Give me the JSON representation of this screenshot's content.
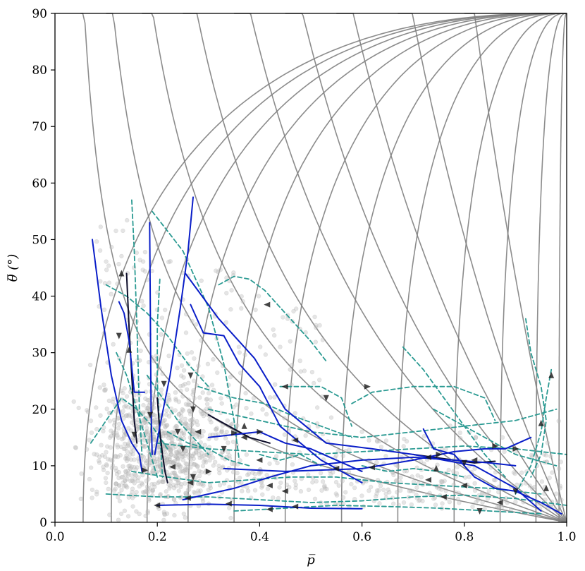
{
  "chart_data": {
    "type": "line",
    "title": "",
    "xlabel": "p̅",
    "ylabel": "θ̅ (°)",
    "xlim": [
      0.0,
      1.0
    ],
    "ylim": [
      0,
      90
    ],
    "x_ticks": [
      "0.0",
      "0.2",
      "0.4",
      "0.6",
      "0.8",
      "1.0"
    ],
    "y_ticks": [
      "0",
      "10",
      "20",
      "30",
      "40",
      "50",
      "60",
      "70",
      "80",
      "90"
    ],
    "grid": false,
    "legend": "none",
    "colors": {
      "gridlines": "#808080",
      "blue": "#0a1ec8",
      "teal": "#2a9a92",
      "dark": "#0d0d2a",
      "points": "#bdbdbd"
    },
    "curvilinear_grid": {
      "hyperbola_levels": [
        0.05,
        0.1,
        0.17,
        0.25,
        0.35,
        0.45,
        0.55,
        0.67,
        0.8
      ],
      "arc_points_x": [
        0.055,
        0.11,
        0.18,
        0.26,
        0.35,
        0.45,
        0.56,
        0.67,
        0.78,
        0.87,
        0.94,
        0.985
      ]
    },
    "series": [
      {
        "style": "blue",
        "x": [
          0.073,
          0.09,
          0.11,
          0.13,
          0.15,
          0.165,
          0.17
        ],
        "y": [
          50,
          38,
          26,
          18,
          14,
          12,
          9
        ]
      },
      {
        "style": "blue",
        "x": [
          0.125,
          0.135,
          0.145,
          0.155,
          0.175
        ],
        "y": [
          39,
          37,
          32,
          23,
          23
        ]
      },
      {
        "style": "blue",
        "x": [
          0.185,
          0.186,
          0.187,
          0.188,
          0.19
        ],
        "y": [
          53,
          42,
          28,
          19,
          12
        ]
      },
      {
        "style": "blue",
        "x": [
          0.27,
          0.26,
          0.245,
          0.225,
          0.205,
          0.195
        ],
        "y": [
          57.5,
          48,
          38,
          26,
          17,
          12
        ]
      },
      {
        "style": "blue",
        "x": [
          0.255,
          0.32,
          0.39,
          0.45,
          0.53,
          0.62,
          0.7,
          0.82,
          0.9,
          0.95
        ],
        "y": [
          44,
          36,
          29,
          20,
          14,
          13,
          12,
          10,
          6,
          2
        ]
      },
      {
        "style": "blue",
        "x": [
          0.265,
          0.29,
          0.33,
          0.36,
          0.4,
          0.44,
          0.52,
          0.6
        ],
        "y": [
          38.5,
          33.5,
          33,
          28,
          24,
          17,
          11,
          7
        ]
      },
      {
        "style": "blue",
        "x": [
          0.33,
          0.45,
          0.6,
          0.7,
          0.78,
          0.84,
          0.88,
          0.93
        ],
        "y": [
          9.5,
          9,
          9.5,
          11,
          12.5,
          13,
          13,
          15
        ]
      },
      {
        "style": "blue",
        "x": [
          0.25,
          0.35,
          0.42,
          0.5,
          0.6,
          0.7,
          0.78,
          0.85,
          0.9
        ],
        "y": [
          4,
          6,
          8,
          10,
          11,
          11.5,
          11,
          10.5,
          10
        ]
      },
      {
        "style": "blue",
        "x": [
          0.2,
          0.3,
          0.4,
          0.5,
          0.6
        ],
        "y": [
          3,
          3.2,
          3,
          2.5,
          2.4
        ]
      },
      {
        "style": "blue",
        "x": [
          0.72,
          0.74,
          0.78,
          0.82,
          0.86,
          0.9,
          0.95,
          0.99
        ],
        "y": [
          16.5,
          13,
          12,
          8,
          6,
          5.5,
          3.5,
          1.5
        ]
      },
      {
        "style": "blue",
        "x": [
          0.3,
          0.4,
          0.45,
          0.5,
          0.55,
          0.6
        ],
        "y": [
          15,
          16,
          14,
          13,
          11,
          9
        ]
      },
      {
        "style": "teal",
        "x": [
          0.15,
          0.155,
          0.16,
          0.165,
          0.17
        ],
        "y": [
          57,
          48,
          35,
          20,
          12
        ]
      },
      {
        "style": "teal",
        "x": [
          0.19,
          0.25,
          0.3,
          0.33,
          0.35,
          0.36
        ],
        "y": [
          55,
          48,
          38,
          28,
          18,
          11
        ]
      },
      {
        "style": "teal",
        "x": [
          0.205,
          0.2,
          0.2,
          0.205,
          0.21
        ],
        "y": [
          43,
          35,
          25,
          16,
          8
        ]
      },
      {
        "style": "teal",
        "x": [
          0.1,
          0.14,
          0.18,
          0.22,
          0.26,
          0.3
        ],
        "y": [
          42,
          40,
          37,
          33,
          28,
          24
        ]
      },
      {
        "style": "teal",
        "x": [
          0.07,
          0.1,
          0.13,
          0.16,
          0.19,
          0.22
        ],
        "y": [
          14,
          18,
          22,
          20,
          17,
          13
        ]
      },
      {
        "style": "teal",
        "x": [
          0.32,
          0.35,
          0.38,
          0.41,
          0.45,
          0.5,
          0.53
        ],
        "y": [
          42,
          43.5,
          43,
          41,
          37,
          32,
          28.5
        ]
      },
      {
        "style": "teal",
        "x": [
          0.28,
          0.35,
          0.41,
          0.46,
          0.52,
          0.58
        ],
        "y": [
          24,
          22,
          21,
          19,
          17,
          15
        ]
      },
      {
        "style": "teal",
        "x": [
          0.44,
          0.48,
          0.52,
          0.56,
          0.58
        ],
        "y": [
          24,
          24,
          24,
          22,
          17
        ]
      },
      {
        "style": "teal",
        "x": [
          0.58,
          0.62,
          0.7,
          0.78,
          0.84,
          0.86
        ],
        "y": [
          21,
          23,
          24,
          24,
          22,
          18
        ]
      },
      {
        "style": "teal",
        "x": [
          0.3,
          0.4,
          0.5,
          0.6,
          0.7,
          0.8,
          0.9,
          0.98
        ],
        "y": [
          20,
          18,
          16,
          15,
          16,
          17,
          18,
          20
        ]
      },
      {
        "style": "teal",
        "x": [
          0.2,
          0.3,
          0.4,
          0.5,
          0.6,
          0.7,
          0.8,
          0.9,
          1.0
        ],
        "y": [
          14,
          13,
          12.5,
          12,
          12.5,
          13,
          13.5,
          13,
          12
        ]
      },
      {
        "style": "teal",
        "x": [
          0.15,
          0.22,
          0.3,
          0.38,
          0.46,
          0.55,
          0.65,
          0.75,
          0.85,
          0.95
        ],
        "y": [
          9,
          8,
          7,
          7.5,
          8,
          8,
          7,
          6.5,
          6,
          5
        ]
      },
      {
        "style": "teal",
        "x": [
          0.1,
          0.2,
          0.3,
          0.4,
          0.5,
          0.6,
          0.7,
          0.8,
          0.9,
          1.0
        ],
        "y": [
          5,
          4.5,
          4.5,
          4,
          3.5,
          3.8,
          4.5,
          4.8,
          4.2,
          3
        ]
      },
      {
        "style": "teal",
        "x": [
          0.35,
          0.45,
          0.55,
          0.65,
          0.75,
          0.85,
          0.95
        ],
        "y": [
          2,
          2.5,
          3,
          2.8,
          2.5,
          2,
          1.5
        ]
      },
      {
        "style": "teal",
        "x": [
          0.68,
          0.72,
          0.76,
          0.8,
          0.84,
          0.88
        ],
        "y": [
          31,
          27,
          22,
          17,
          12,
          8
        ]
      },
      {
        "style": "teal",
        "x": [
          0.92,
          0.93,
          0.95,
          0.96,
          0.95,
          0.93
        ],
        "y": [
          36,
          30,
          24,
          18,
          12,
          8
        ]
      },
      {
        "style": "teal",
        "x": [
          0.9,
          0.93,
          0.95,
          0.96,
          0.97
        ],
        "y": [
          5,
          10,
          16,
          22,
          27
        ]
      },
      {
        "style": "teal",
        "x": [
          0.12,
          0.14,
          0.16,
          0.18,
          0.2
        ],
        "y": [
          30,
          26,
          20,
          14,
          8
        ]
      },
      {
        "style": "teal",
        "x": [
          0.18,
          0.21,
          0.24,
          0.27,
          0.3
        ],
        "y": [
          26,
          22,
          18,
          15,
          12
        ]
      },
      {
        "style": "teal",
        "x": [
          0.22,
          0.26,
          0.3,
          0.34,
          0.38
        ],
        "y": [
          16,
          14,
          13,
          11,
          10
        ]
      },
      {
        "style": "teal",
        "x": [
          0.4,
          0.44,
          0.48,
          0.52
        ],
        "y": [
          12,
          11,
          12,
          10
        ]
      },
      {
        "style": "teal",
        "x": [
          0.6,
          0.65,
          0.7,
          0.75,
          0.8
        ],
        "y": [
          10,
          9,
          9.5,
          9,
          8
        ]
      },
      {
        "style": "teal",
        "x": [
          0.74,
          0.78,
          0.82,
          0.86,
          0.9,
          0.94,
          0.98
        ],
        "y": [
          20,
          18,
          16,
          14,
          12,
          11,
          10
        ]
      },
      {
        "style": "dark",
        "x": [
          0.14,
          0.145,
          0.15,
          0.155,
          0.16
        ],
        "y": [
          44,
          34,
          26,
          18,
          14
        ]
      },
      {
        "style": "dark",
        "x": [
          0.2,
          0.205,
          0.21,
          0.215,
          0.22
        ],
        "y": [
          22,
          16,
          12,
          9,
          7
        ]
      },
      {
        "style": "dark",
        "x": [
          0.3,
          0.34,
          0.38,
          0.42
        ],
        "y": [
          19,
          17,
          15,
          14
        ]
      },
      {
        "style": "dark",
        "x": [
          0.7,
          0.74,
          0.78,
          0.82,
          0.86
        ],
        "y": [
          12,
          11.5,
          11,
          10.5,
          10.8
        ]
      }
    ],
    "arrows": [
      {
        "x": 0.13,
        "y": 44,
        "dir": "up"
      },
      {
        "x": 0.145,
        "y": 30.5,
        "dir": "up"
      },
      {
        "x": 0.155,
        "y": 15.5,
        "dir": "down"
      },
      {
        "x": 0.175,
        "y": 9.2,
        "dir": "right"
      },
      {
        "x": 0.125,
        "y": 33,
        "dir": "down"
      },
      {
        "x": 0.186,
        "y": 19,
        "dir": "down"
      },
      {
        "x": 0.213,
        "y": 24.5,
        "dir": "down"
      },
      {
        "x": 0.265,
        "y": 26,
        "dir": "down"
      },
      {
        "x": 0.27,
        "y": 20,
        "dir": "down"
      },
      {
        "x": 0.24,
        "y": 16,
        "dir": "down"
      },
      {
        "x": 0.25,
        "y": 13,
        "dir": "down"
      },
      {
        "x": 0.27,
        "y": 8,
        "dir": "down"
      },
      {
        "x": 0.28,
        "y": 16,
        "dir": "left"
      },
      {
        "x": 0.3,
        "y": 9,
        "dir": "right"
      },
      {
        "x": 0.265,
        "y": 7,
        "dir": "left"
      },
      {
        "x": 0.23,
        "y": 9.8,
        "dir": "left"
      },
      {
        "x": 0.26,
        "y": 4.3,
        "dir": "left"
      },
      {
        "x": 0.2,
        "y": 3,
        "dir": "left"
      },
      {
        "x": 0.37,
        "y": 17,
        "dir": "up"
      },
      {
        "x": 0.415,
        "y": 38.5,
        "dir": "left"
      },
      {
        "x": 0.45,
        "y": 24,
        "dir": "left"
      },
      {
        "x": 0.53,
        "y": 22,
        "dir": "down"
      },
      {
        "x": 0.4,
        "y": 16,
        "dir": "right"
      },
      {
        "x": 0.47,
        "y": 14.5,
        "dir": "left"
      },
      {
        "x": 0.37,
        "y": 15,
        "dir": "left"
      },
      {
        "x": 0.35,
        "y": 15.8,
        "dir": "right"
      },
      {
        "x": 0.33,
        "y": 13,
        "dir": "down"
      },
      {
        "x": 0.4,
        "y": 11,
        "dir": "left"
      },
      {
        "x": 0.45,
        "y": 5.5,
        "dir": "left"
      },
      {
        "x": 0.42,
        "y": 6.5,
        "dir": "left"
      },
      {
        "x": 0.34,
        "y": 3.3,
        "dir": "left"
      },
      {
        "x": 0.42,
        "y": 2.3,
        "dir": "left"
      },
      {
        "x": 0.47,
        "y": 2.8,
        "dir": "left"
      },
      {
        "x": 0.55,
        "y": 9.5,
        "dir": "left"
      },
      {
        "x": 0.62,
        "y": 9.7,
        "dir": "left"
      },
      {
        "x": 0.61,
        "y": 24,
        "dir": "right"
      },
      {
        "x": 0.73,
        "y": 11.5,
        "dir": "left"
      },
      {
        "x": 0.745,
        "y": 9.5,
        "dir": "up"
      },
      {
        "x": 0.73,
        "y": 7.5,
        "dir": "left"
      },
      {
        "x": 0.75,
        "y": 12,
        "dir": "right"
      },
      {
        "x": 0.8,
        "y": 10.5,
        "dir": "down"
      },
      {
        "x": 0.82,
        "y": 11,
        "dir": "left"
      },
      {
        "x": 0.76,
        "y": 4.5,
        "dir": "left"
      },
      {
        "x": 0.8,
        "y": 6.5,
        "dir": "left"
      },
      {
        "x": 0.83,
        "y": 2,
        "dir": "down"
      },
      {
        "x": 0.86,
        "y": 13.5,
        "dir": "right"
      },
      {
        "x": 0.87,
        "y": 3.5,
        "dir": "left"
      },
      {
        "x": 0.9,
        "y": 13,
        "dir": "right"
      },
      {
        "x": 0.9,
        "y": 5.5,
        "dir": "down"
      },
      {
        "x": 0.96,
        "y": 6,
        "dir": "up"
      },
      {
        "x": 0.95,
        "y": 17.5,
        "dir": "up"
      },
      {
        "x": 0.97,
        "y": 26,
        "dir": "up"
      }
    ]
  }
}
